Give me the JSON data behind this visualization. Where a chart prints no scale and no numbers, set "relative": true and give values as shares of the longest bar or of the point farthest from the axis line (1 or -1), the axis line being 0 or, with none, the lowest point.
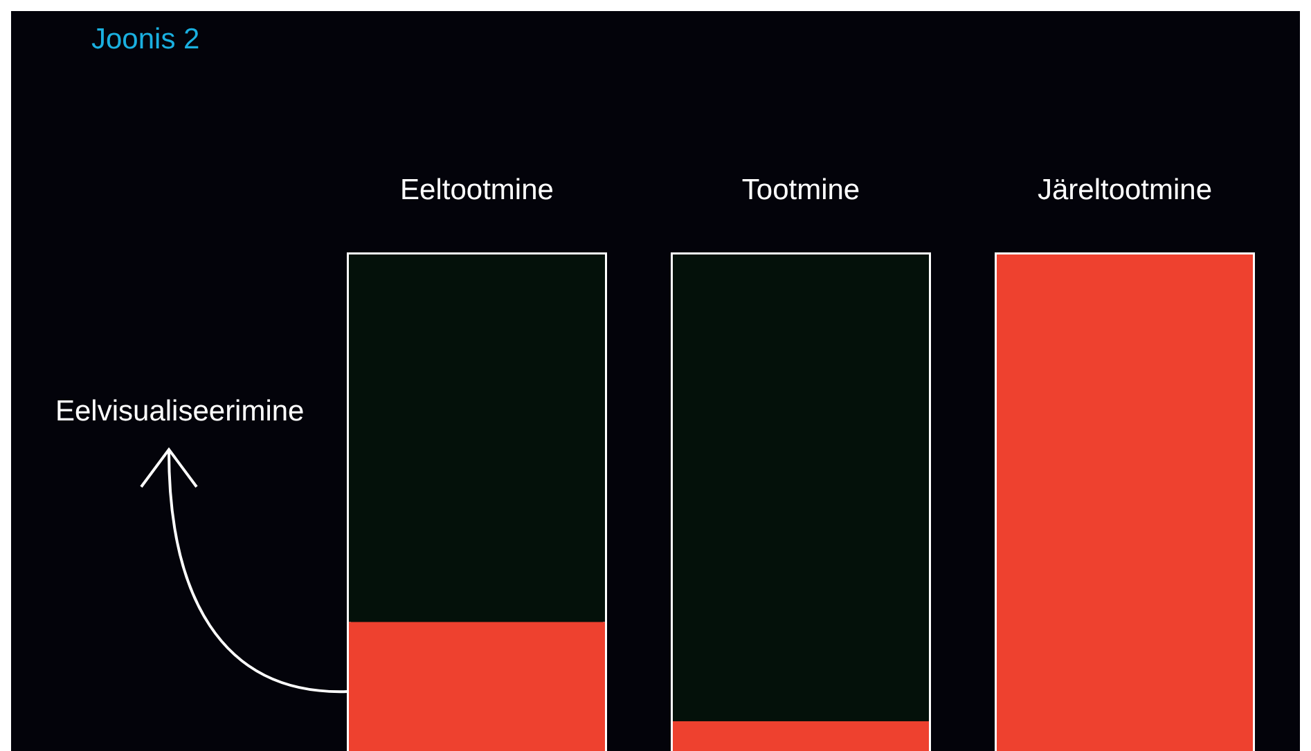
{
  "chart_data": {
    "type": "bar",
    "title": "Joonis 2",
    "annotations": [
      "Eelvisualiseerimine"
    ],
    "categories": [
      "Eeltootmine",
      "Tootmine",
      "Järeltootmine"
    ],
    "stacked": true,
    "relative": true,
    "series": [
      {
        "color": "#ee412f",
        "values": [
          0.26,
          0.06,
          1
        ]
      },
      {
        "color": "#04110a",
        "values": [
          0.74,
          0.94,
          0
        ]
      }
    ]
  }
}
